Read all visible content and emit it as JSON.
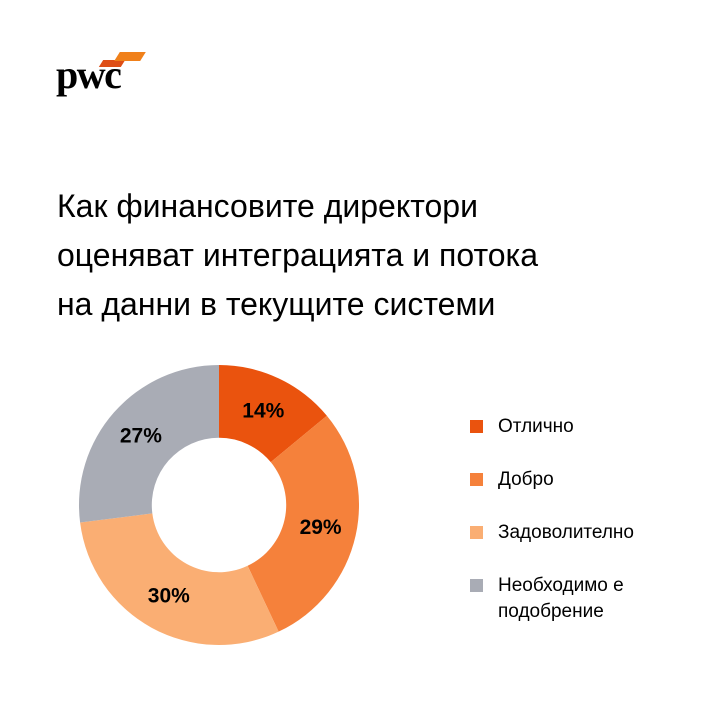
{
  "brand": {
    "logo_text": "pwc",
    "logo_mark_colors": [
      "#DE4E16",
      "#F0801A"
    ]
  },
  "title": {
    "full": "Как финансовите директори оценяват интеграцията и потока на данни в текущите системи",
    "lines": [
      "Как финансовите директори",
      "оценяват интеграцията и потока",
      "на данни в текущите системи"
    ]
  },
  "chart_data": {
    "type": "pie",
    "subtype": "donut",
    "title": "Как финансовите директори оценяват интеграцията и потока на данни в текущите системи",
    "categories": [
      "Отлично",
      "Добро",
      "Задоволително",
      "Необходимо е подобрение"
    ],
    "values": [
      14,
      29,
      30,
      27
    ],
    "unit": "%",
    "labels": [
      "14%",
      "29%",
      "30%",
      "27%"
    ],
    "colors": [
      "#EA530E",
      "#F5813B",
      "#FAAE73",
      "#A9ACB5"
    ],
    "label_color": "#000000",
    "start_angle_deg": 0,
    "direction": "clockwise",
    "inner_radius_ratio": 0.48,
    "legend_position": "right",
    "grid": false
  }
}
